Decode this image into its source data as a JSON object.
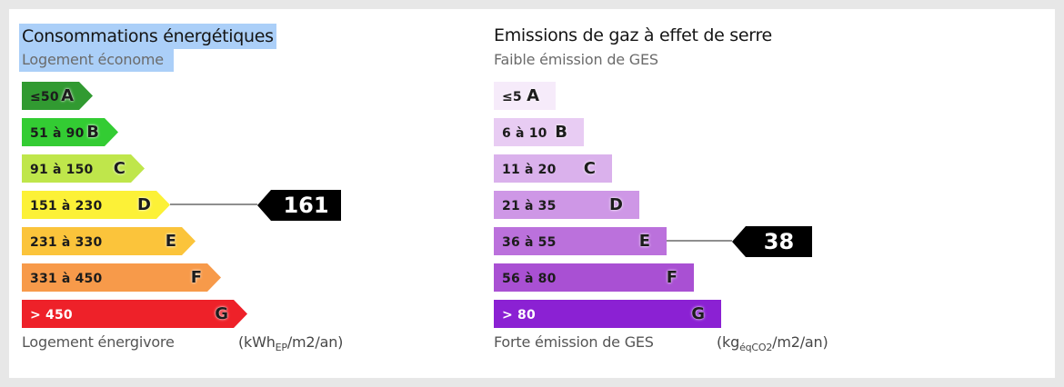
{
  "colors": {
    "selection_highlight": "#ABCFF8",
    "indicator_bg": "#000000",
    "indicator_text": "#FFFFFF",
    "connector": "#8F8F8F"
  },
  "energy": {
    "title": "Consommations énergétiques",
    "subtitle": "Logement économe",
    "footer": "Logement énergivore",
    "unit_pre": "(kWh",
    "unit_sub": "EP",
    "unit_post": "/m2/an)",
    "value": "161",
    "value_class": "D",
    "classes": [
      {
        "letter": "A",
        "range": "≤50",
        "color": "#319A31",
        "text": "#1c1c1c"
      },
      {
        "letter": "B",
        "range": "51 à 90",
        "color": "#33CC33",
        "text": "#1c1c1c"
      },
      {
        "letter": "C",
        "range": "91 à 150",
        "color": "#BFE64B",
        "text": "#1c1c1c"
      },
      {
        "letter": "D",
        "range": "151 à 230",
        "color": "#FCF137",
        "text": "#1c1c1c"
      },
      {
        "letter": "E",
        "range": "231 à 330",
        "color": "#FBC43B",
        "text": "#1c1c1c"
      },
      {
        "letter": "F",
        "range": "331 à 450",
        "color": "#F79A4A",
        "text": "#1c1c1c"
      },
      {
        "letter": "G",
        "range": "> 450",
        "color": "#EE2129",
        "text": "#ffffff"
      }
    ]
  },
  "ges": {
    "title": "Emissions de gaz à effet de serre",
    "subtitle": "Faible émission de GES",
    "footer": "Forte émission de GES",
    "unit_pre": "(kg",
    "unit_sub": "éqCO2",
    "unit_post": "/m2/an)",
    "value": "38",
    "value_class": "E",
    "classes": [
      {
        "letter": "A",
        "range": "≤5",
        "color": "#F6EBFA",
        "text": "#1c1c1c"
      },
      {
        "letter": "B",
        "range": "6 à 10",
        "color": "#E8CCF3",
        "text": "#1c1c1c"
      },
      {
        "letter": "C",
        "range": "11 à 20",
        "color": "#DAB1EC",
        "text": "#1c1c1c"
      },
      {
        "letter": "D",
        "range": "21 à 35",
        "color": "#CE97E6",
        "text": "#1c1c1c"
      },
      {
        "letter": "E",
        "range": "36 à 55",
        "color": "#BB71DC",
        "text": "#1c1c1c"
      },
      {
        "letter": "F",
        "range": "56 à 80",
        "color": "#A950D3",
        "text": "#1c1c1c"
      },
      {
        "letter": "G",
        "range": "> 80",
        "color": "#8B21D3",
        "text": "#ffffff"
      }
    ]
  },
  "chart_data": [
    {
      "type": "bar",
      "title": "Consommations énergétiques",
      "scale_top_label": "Logement économe",
      "scale_bottom_label": "Logement énergivore",
      "unit": "kWh EP/m2/an",
      "categories": [
        "A",
        "B",
        "C",
        "D",
        "E",
        "F",
        "G"
      ],
      "ranges": [
        "≤50",
        "51 à 90",
        "91 à 150",
        "151 à 230",
        "231 à 330",
        "331 à 450",
        "> 450"
      ],
      "colors": [
        "#319A31",
        "#33CC33",
        "#BFE64B",
        "#FCF137",
        "#FBC43B",
        "#F79A4A",
        "#EE2129"
      ],
      "indicated_value": 161,
      "indicated_class": "D",
      "legend_position": "none",
      "grid": false
    },
    {
      "type": "bar",
      "title": "Emissions de gaz à effet de serre",
      "scale_top_label": "Faible émission de GES",
      "scale_bottom_label": "Forte émission de GES",
      "unit": "kg éqCO2/m2/an",
      "categories": [
        "A",
        "B",
        "C",
        "D",
        "E",
        "F",
        "G"
      ],
      "ranges": [
        "≤5",
        "6 à 10",
        "11 à 20",
        "21 à 35",
        "36 à 55",
        "56 à 80",
        "> 80"
      ],
      "colors": [
        "#F6EBFA",
        "#E8CCF3",
        "#DAB1EC",
        "#CE97E6",
        "#BB71DC",
        "#A950D3",
        "#8B21D3"
      ],
      "indicated_value": 38,
      "indicated_class": "E",
      "legend_position": "none",
      "grid": false
    }
  ]
}
